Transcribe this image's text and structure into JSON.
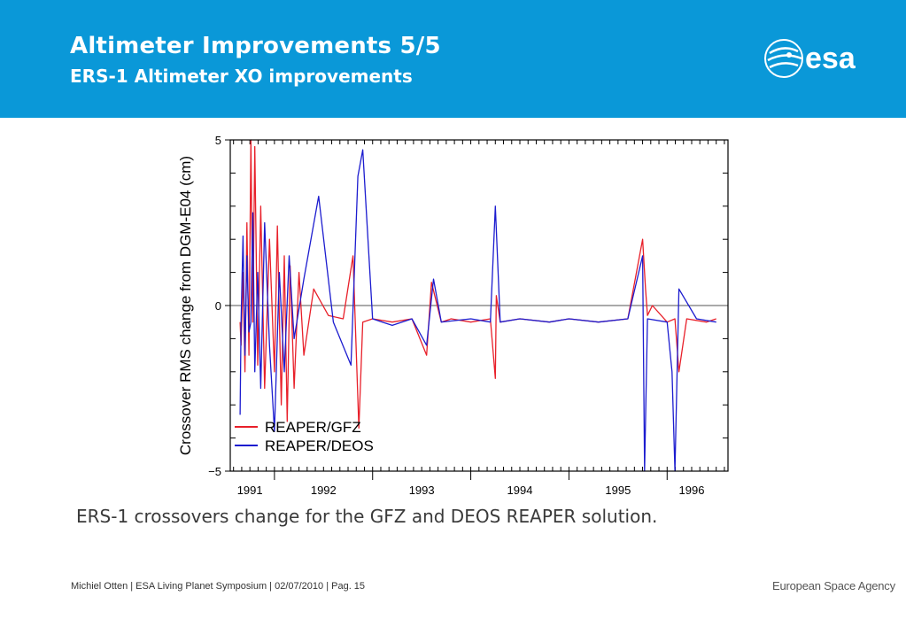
{
  "slide": {
    "title": "Altimeter Improvements 5/5",
    "subtitle": "ERS-1 Altimeter XO improvements",
    "caption": "ERS-1 crossovers change for the GFZ and DEOS REAPER solution.",
    "footer_left": "Michiel Otten | ESA Living Planet Symposium | 02/07/2010 | Pag. 15",
    "footer_right": "European Space Agency",
    "logo_text": "esa"
  },
  "colors": {
    "header": "#0a98d8",
    "gfz": "#e8202a",
    "deos": "#1c1ccf"
  },
  "chart_data": {
    "type": "line",
    "title": "",
    "xlabel": "",
    "ylabel": "Crossover RMS change from DGM-E04 (cm)",
    "ylim": [
      -5,
      5
    ],
    "xlim": [
      1991.55,
      1996.62
    ],
    "yticks": [
      {
        "value": 5,
        "label": "5"
      },
      {
        "value": 0,
        "label": "0"
      },
      {
        "value": -5,
        "label": "−5"
      }
    ],
    "xticks": [
      {
        "value": 1991.75,
        "label": "1991"
      },
      {
        "value": 1992.5,
        "label": "1992"
      },
      {
        "value": 1993.5,
        "label": "1993"
      },
      {
        "value": 1994.5,
        "label": "1994"
      },
      {
        "value": 1995.5,
        "label": "1995"
      },
      {
        "value": 1996.25,
        "label": "1996"
      }
    ],
    "year_boundaries": [
      1992.0,
      1993.0,
      1994.0,
      1995.0,
      1996.0
    ],
    "zero_line": true,
    "legend_position": "bottom-left",
    "series": [
      {
        "name": "REAPER/GFZ",
        "color": "#e8202a",
        "x": [
          1991.65,
          1991.66,
          1991.68,
          1991.7,
          1991.72,
          1991.74,
          1991.76,
          1991.78,
          1991.8,
          1991.83,
          1991.86,
          1991.9,
          1991.95,
          1992.0,
          1992.03,
          1992.07,
          1992.1,
          1992.13,
          1992.16,
          1992.2,
          1992.25,
          1992.3,
          1992.4,
          1992.55,
          1992.7,
          1992.8,
          1992.86,
          1992.9,
          1993.0,
          1993.2,
          1993.4,
          1993.55,
          1993.6,
          1993.7,
          1993.8,
          1994.0,
          1994.2,
          1994.25,
          1994.26,
          1994.3,
          1994.5,
          1994.8,
          1995.0,
          1995.3,
          1995.6,
          1995.75,
          1995.78,
          1995.8,
          1995.85,
          1996.0,
          1996.08,
          1996.12,
          1996.2,
          1996.4,
          1996.5
        ],
        "y": [
          -0.5,
          -1.2,
          1.0,
          -2.0,
          2.5,
          -1.5,
          5.0,
          -0.5,
          4.8,
          -1.8,
          3.0,
          -2.5,
          2.0,
          -2.0,
          2.4,
          -3.0,
          1.5,
          -3.5,
          1.2,
          -2.5,
          1.0,
          -1.5,
          0.5,
          -0.3,
          -0.4,
          1.5,
          -3.7,
          -0.5,
          -0.4,
          -0.5,
          -0.4,
          -1.5,
          0.7,
          -0.5,
          -0.4,
          -0.5,
          -0.4,
          -2.2,
          0.3,
          -0.5,
          -0.4,
          -0.5,
          -0.4,
          -0.5,
          -0.4,
          2.0,
          0.5,
          -0.3,
          0.0,
          -0.5,
          -0.4,
          -2.0,
          -0.4,
          -0.5,
          -0.4
        ]
      },
      {
        "name": "REAPER/DEOS",
        "color": "#1c1ccf",
        "x": [
          1991.65,
          1991.66,
          1991.68,
          1991.7,
          1991.72,
          1991.74,
          1991.76,
          1991.78,
          1991.8,
          1991.83,
          1991.86,
          1991.9,
          1991.95,
          1992.0,
          1992.05,
          1992.1,
          1992.15,
          1992.2,
          1992.3,
          1992.45,
          1992.6,
          1992.78,
          1992.85,
          1992.9,
          1993.0,
          1993.1,
          1993.2,
          1993.4,
          1993.55,
          1993.62,
          1993.7,
          1994.0,
          1994.2,
          1994.25,
          1994.3,
          1994.5,
          1994.8,
          1995.0,
          1995.3,
          1995.6,
          1995.75,
          1995.77,
          1995.8,
          1996.0,
          1996.05,
          1996.08,
          1996.12,
          1996.3,
          1996.5
        ],
        "y": [
          -3.3,
          -0.5,
          2.1,
          -1.5,
          1.5,
          -0.8,
          -0.5,
          2.8,
          -2.0,
          1.0,
          -2.5,
          2.5,
          -1.2,
          -3.8,
          1.0,
          -2.0,
          1.5,
          -1.0,
          0.8,
          3.3,
          -0.5,
          -1.8,
          3.9,
          4.7,
          -0.4,
          -0.5,
          -0.6,
          -0.4,
          -1.2,
          0.8,
          -0.5,
          -0.4,
          -0.5,
          3.0,
          -0.5,
          -0.4,
          -0.5,
          -0.4,
          -0.5,
          -0.4,
          1.5,
          -5.0,
          -0.4,
          -0.5,
          -2.0,
          -5.0,
          0.5,
          -0.4,
          -0.5
        ]
      }
    ]
  }
}
